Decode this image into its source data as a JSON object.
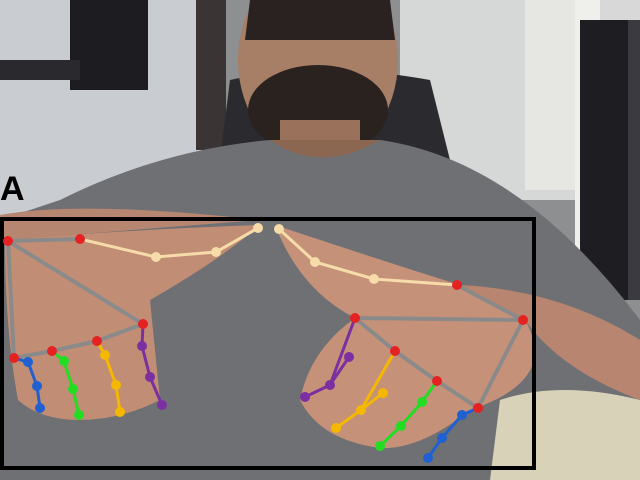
{
  "annotation": {
    "label": "A",
    "box_color": "#000000"
  },
  "skeleton_colors": {
    "palm": "#8a8a8a",
    "thumb": "#f5dca8",
    "index": "#7b2fa0",
    "middle": "#f5b800",
    "ring": "#22dd22",
    "pinky": "#2060d0",
    "base_joint": "#e52222"
  }
}
